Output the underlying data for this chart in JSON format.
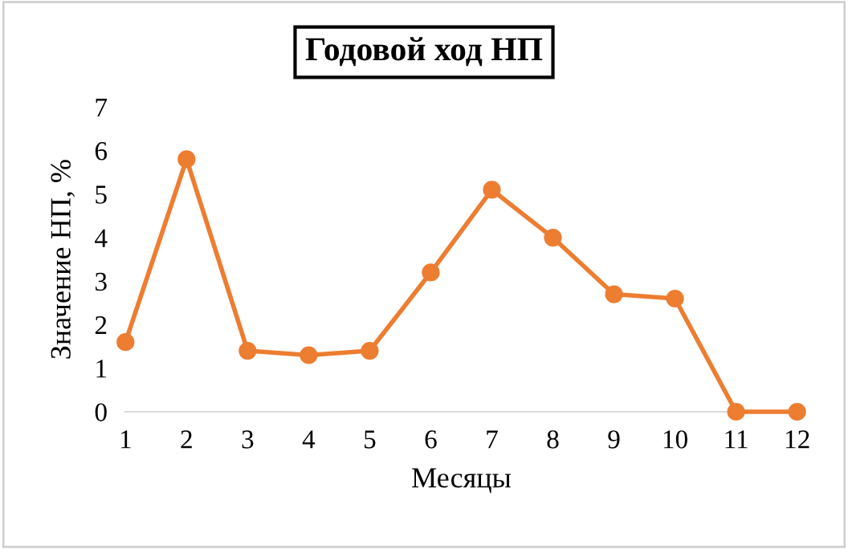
{
  "chart_data": {
    "type": "line",
    "title": "Годовой ход НП",
    "xlabel": "Месяцы",
    "ylabel": "Значение НП, %",
    "x": [
      1,
      2,
      3,
      4,
      5,
      6,
      7,
      8,
      9,
      10,
      11,
      12
    ],
    "series": [
      {
        "color": "#ed7d31",
        "values": [
          1.6,
          5.8,
          1.4,
          1.3,
          1.4,
          3.2,
          5.1,
          4.0,
          2.7,
          2.6,
          0,
          0
        ]
      }
    ],
    "xlim": [
      1,
      12
    ],
    "xticks": [
      1,
      2,
      3,
      4,
      5,
      6,
      7,
      8,
      9,
      10,
      11,
      12
    ],
    "ylim": [
      0,
      7
    ],
    "yticks": [
      0,
      1,
      2,
      3,
      4,
      5,
      6,
      7
    ],
    "grid": false,
    "legend": false,
    "marker": "circle",
    "line_style": "solid"
  }
}
